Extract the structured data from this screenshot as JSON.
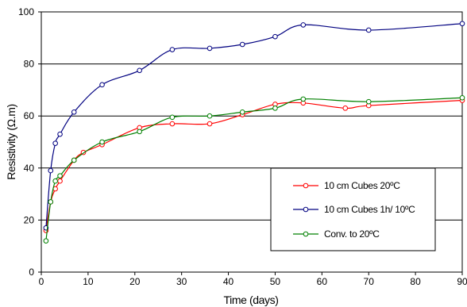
{
  "chart_data": {
    "type": "line",
    "title": "",
    "xlabel": "Time (days)",
    "ylabel": "Resistivity (Ω.m)",
    "xlim": [
      0,
      90
    ],
    "ylim": [
      0,
      100
    ],
    "xticks": [
      0,
      10,
      20,
      30,
      40,
      50,
      60,
      70,
      80,
      90
    ],
    "yticks": [
      0,
      20,
      40,
      60,
      80,
      100
    ],
    "grid": "horizontal",
    "legend_position": "bottom-right",
    "series": [
      {
        "name": "10 cm Cubes 20ºC",
        "color": "#ff0000",
        "x": [
          1,
          2,
          3,
          4,
          7,
          9,
          13,
          21,
          28,
          36,
          43,
          50,
          56,
          65,
          70,
          90
        ],
        "y": [
          16,
          27,
          32,
          35,
          43,
          46,
          49,
          55.5,
          57,
          57,
          60.5,
          64.5,
          65,
          63,
          64,
          66
        ]
      },
      {
        "name": "10 cm Cubes 1h/ 10ºC",
        "color": "#000080",
        "x": [
          1,
          2,
          3,
          4,
          7,
          13,
          21,
          28,
          36,
          43,
          50,
          56,
          70,
          90
        ],
        "y": [
          17,
          39,
          49.5,
          53,
          61.5,
          72,
          77.5,
          85.5,
          86,
          87.5,
          90.5,
          95,
          93,
          95.5
        ]
      },
      {
        "name": "Conv. to 20ºC",
        "color": "#008000",
        "x": [
          1,
          2,
          3,
          4,
          7,
          13,
          21,
          28,
          36,
          43,
          50,
          56,
          70,
          90
        ],
        "y": [
          12,
          27,
          35,
          37,
          43,
          50,
          54,
          59.5,
          60,
          61.5,
          63,
          66.5,
          65.5,
          67
        ]
      }
    ]
  }
}
